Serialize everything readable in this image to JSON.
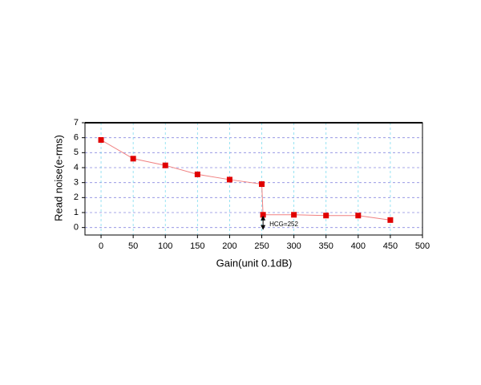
{
  "chart_data": {
    "type": "line",
    "xlabel": "Gain(unit 0.1dB)",
    "ylabel": "Read noise(e-rms)",
    "x": [
      0,
      50,
      100,
      150,
      200,
      250,
      252,
      300,
      350,
      400,
      450
    ],
    "values": [
      5.85,
      4.6,
      4.15,
      3.55,
      3.2,
      2.9,
      0.85,
      0.85,
      0.8,
      0.8,
      0.5
    ],
    "color": "#e00000",
    "line_color": "#f08080",
    "annotation": "HCG=252",
    "xlim": [
      -25,
      500
    ],
    "xticks": [
      0,
      50,
      100,
      150,
      200,
      250,
      300,
      350,
      400,
      450,
      500
    ],
    "ylim": [
      -0.5,
      7
    ],
    "yticks": [
      0,
      1,
      2,
      3,
      4,
      5,
      6,
      7
    ],
    "grid": true
  }
}
